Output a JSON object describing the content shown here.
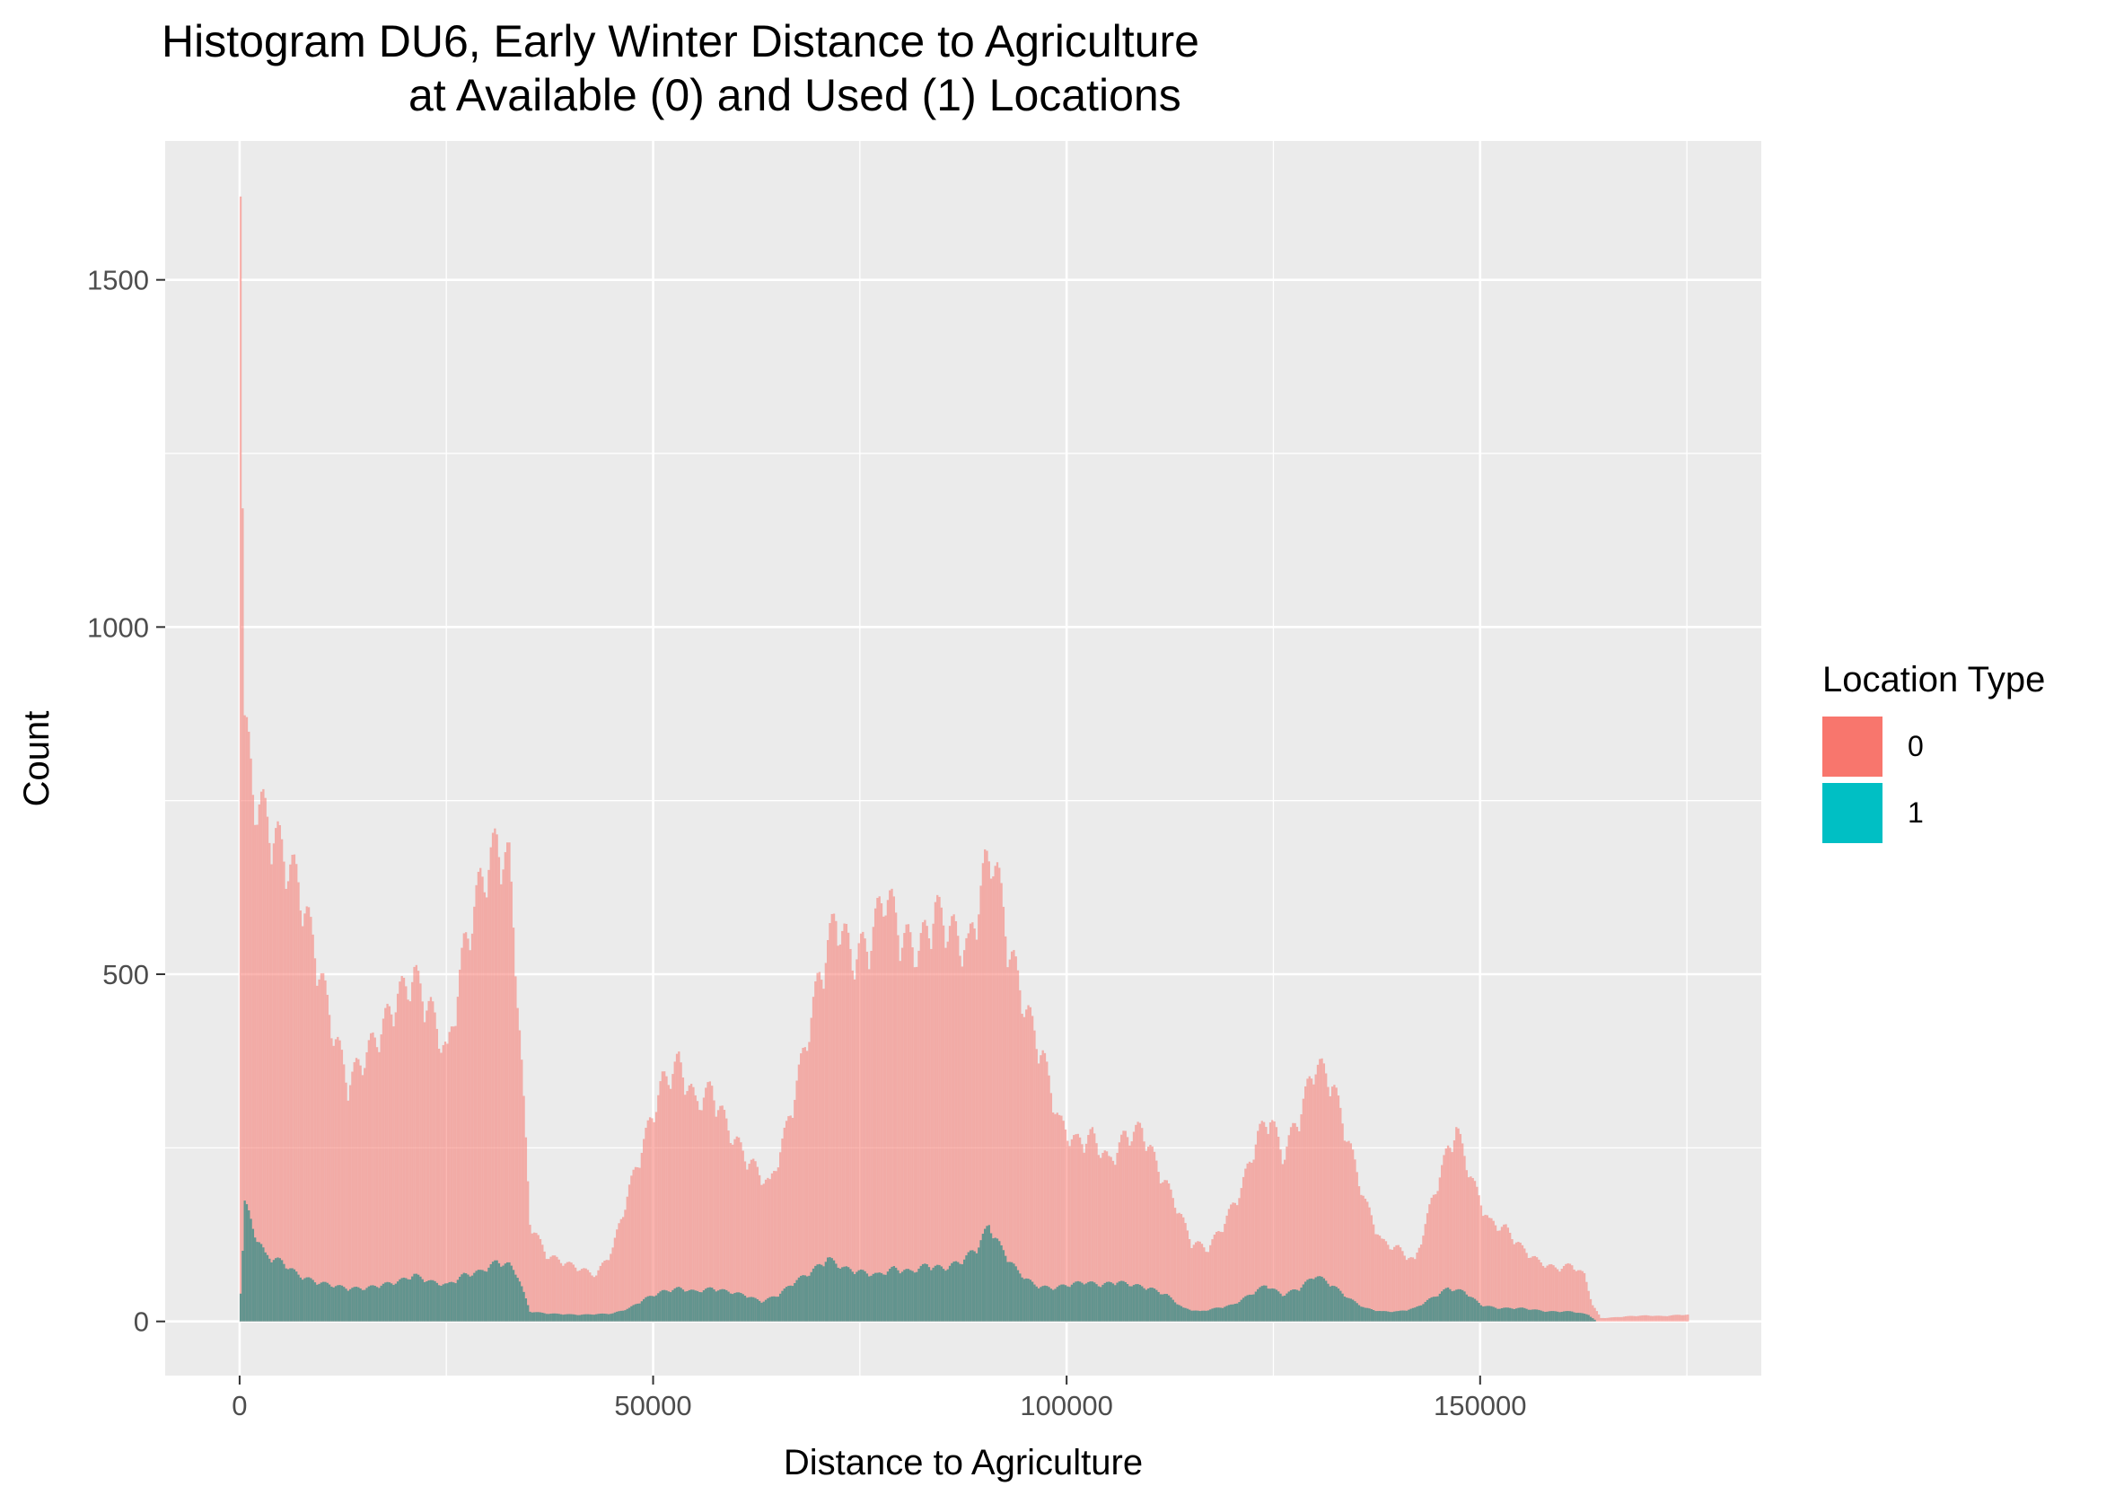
{
  "chart_data": {
    "type": "bar",
    "title": "Histogram DU6, Early Winter Distance to Agriculture",
    "subtitle": "at Available (0) and Used (1) Locations",
    "xlabel": "Distance to Agriculture",
    "ylabel": "Count",
    "xlim": [
      -9000,
      184000
    ],
    "ylim": [
      -78,
      1700
    ],
    "x_ticks": [
      0,
      50000,
      100000,
      150000
    ],
    "x_tick_labels": [
      "0",
      "50000",
      "100000",
      "150000"
    ],
    "y_ticks": [
      0,
      500,
      1000,
      1500
    ],
    "y_tick_labels": [
      "0",
      "500",
      "1000",
      "1500"
    ],
    "grid": true,
    "legend": {
      "title": "Location Type",
      "position": "right",
      "entries": [
        {
          "label": "0",
          "color": "#F8766D"
        },
        {
          "label": "1",
          "color": "#00BFC4"
        }
      ]
    },
    "series": [
      {
        "name": "0",
        "color": "#F8766D",
        "points": [
          [
            0,
            1620
          ],
          [
            500,
            900
          ],
          [
            1500,
            800
          ],
          [
            3000,
            760
          ],
          [
            5000,
            710
          ],
          [
            7000,
            660
          ],
          [
            9000,
            560
          ],
          [
            11000,
            450
          ],
          [
            13000,
            360
          ],
          [
            15000,
            400
          ],
          [
            17000,
            440
          ],
          [
            19000,
            490
          ],
          [
            21000,
            520
          ],
          [
            23000,
            470
          ],
          [
            25000,
            400
          ],
          [
            27000,
            560
          ],
          [
            29000,
            660
          ],
          [
            31000,
            720
          ],
          [
            32500,
            690
          ],
          [
            33500,
            500
          ],
          [
            35000,
            150
          ],
          [
            37000,
            100
          ],
          [
            39000,
            90
          ],
          [
            41000,
            80
          ],
          [
            43000,
            70
          ],
          [
            45000,
            110
          ],
          [
            47000,
            200
          ],
          [
            49000,
            280
          ],
          [
            51000,
            360
          ],
          [
            53000,
            390
          ],
          [
            55000,
            330
          ],
          [
            57000,
            350
          ],
          [
            59000,
            290
          ],
          [
            61000,
            250
          ],
          [
            63000,
            220
          ],
          [
            64000,
            205
          ],
          [
            66000,
            290
          ],
          [
            68000,
            400
          ],
          [
            70000,
            520
          ],
          [
            72000,
            610
          ],
          [
            74000,
            550
          ],
          [
            76000,
            570
          ],
          [
            78000,
            650
          ],
          [
            80000,
            580
          ],
          [
            82000,
            560
          ],
          [
            84000,
            620
          ],
          [
            86000,
            590
          ],
          [
            88000,
            560
          ],
          [
            90000,
            680
          ],
          [
            91000,
            710
          ],
          [
            93000,
            560
          ],
          [
            95000,
            470
          ],
          [
            97000,
            400
          ],
          [
            99000,
            300
          ],
          [
            101000,
            270
          ],
          [
            103000,
            280
          ],
          [
            105000,
            240
          ],
          [
            107000,
            280
          ],
          [
            109000,
            290
          ],
          [
            111000,
            230
          ],
          [
            113000,
            180
          ],
          [
            115000,
            120
          ],
          [
            117000,
            110
          ],
          [
            119000,
            150
          ],
          [
            121000,
            200
          ],
          [
            123000,
            280
          ],
          [
            124500,
            310
          ],
          [
            126000,
            250
          ],
          [
            128000,
            310
          ],
          [
            130000,
            390
          ],
          [
            132000,
            360
          ],
          [
            134000,
            270
          ],
          [
            136000,
            180
          ],
          [
            138000,
            120
          ],
          [
            140000,
            110
          ],
          [
            142000,
            90
          ],
          [
            144000,
            180
          ],
          [
            146000,
            260
          ],
          [
            147000,
            290
          ],
          [
            149000,
            210
          ],
          [
            151000,
            150
          ],
          [
            153000,
            140
          ],
          [
            155000,
            110
          ],
          [
            157000,
            90
          ],
          [
            159000,
            80
          ],
          [
            161000,
            85
          ],
          [
            162500,
            70
          ],
          [
            163500,
            25
          ],
          [
            164500,
            5
          ],
          [
            166000,
            6
          ],
          [
            168000,
            8
          ],
          [
            170000,
            9
          ],
          [
            172000,
            8
          ],
          [
            174000,
            10
          ],
          [
            175000,
            10
          ]
        ]
      },
      {
        "name": "1",
        "color": "#00BFC4",
        "points": [
          [
            0,
            40
          ],
          [
            500,
            180
          ],
          [
            1500,
            140
          ],
          [
            3000,
            100
          ],
          [
            5000,
            90
          ],
          [
            7000,
            70
          ],
          [
            9000,
            60
          ],
          [
            11000,
            55
          ],
          [
            13000,
            50
          ],
          [
            15000,
            50
          ],
          [
            17000,
            55
          ],
          [
            19000,
            60
          ],
          [
            21000,
            70
          ],
          [
            23000,
            60
          ],
          [
            25000,
            55
          ],
          [
            27000,
            70
          ],
          [
            29000,
            75
          ],
          [
            31000,
            90
          ],
          [
            32500,
            85
          ],
          [
            33500,
            70
          ],
          [
            35000,
            15
          ],
          [
            37000,
            12
          ],
          [
            41000,
            10
          ],
          [
            45000,
            12
          ],
          [
            47000,
            20
          ],
          [
            49000,
            35
          ],
          [
            51000,
            45
          ],
          [
            53000,
            50
          ],
          [
            55000,
            45
          ],
          [
            57000,
            50
          ],
          [
            59000,
            45
          ],
          [
            61000,
            40
          ],
          [
            63000,
            30
          ],
          [
            65000,
            40
          ],
          [
            67000,
            60
          ],
          [
            69000,
            75
          ],
          [
            71000,
            95
          ],
          [
            73000,
            80
          ],
          [
            75000,
            75
          ],
          [
            77000,
            70
          ],
          [
            79000,
            80
          ],
          [
            81000,
            75
          ],
          [
            83000,
            85
          ],
          [
            85000,
            80
          ],
          [
            87000,
            90
          ],
          [
            89000,
            110
          ],
          [
            90500,
            145
          ],
          [
            92000,
            110
          ],
          [
            94000,
            75
          ],
          [
            96000,
            55
          ],
          [
            98000,
            50
          ],
          [
            100000,
            55
          ],
          [
            102000,
            60
          ],
          [
            104000,
            55
          ],
          [
            106000,
            60
          ],
          [
            108000,
            55
          ],
          [
            110000,
            50
          ],
          [
            112000,
            40
          ],
          [
            114000,
            20
          ],
          [
            116000,
            15
          ],
          [
            118000,
            20
          ],
          [
            120000,
            25
          ],
          [
            122000,
            40
          ],
          [
            124000,
            55
          ],
          [
            126000,
            40
          ],
          [
            128000,
            50
          ],
          [
            130000,
            70
          ],
          [
            132000,
            55
          ],
          [
            134000,
            35
          ],
          [
            136000,
            20
          ],
          [
            138000,
            15
          ],
          [
            140000,
            15
          ],
          [
            142000,
            20
          ],
          [
            144000,
            35
          ],
          [
            146000,
            50
          ],
          [
            148000,
            45
          ],
          [
            150000,
            25
          ],
          [
            152000,
            20
          ],
          [
            155000,
            20
          ],
          [
            158000,
            15
          ],
          [
            161000,
            15
          ],
          [
            163000,
            10
          ],
          [
            164000,
            0
          ]
        ]
      }
    ]
  }
}
